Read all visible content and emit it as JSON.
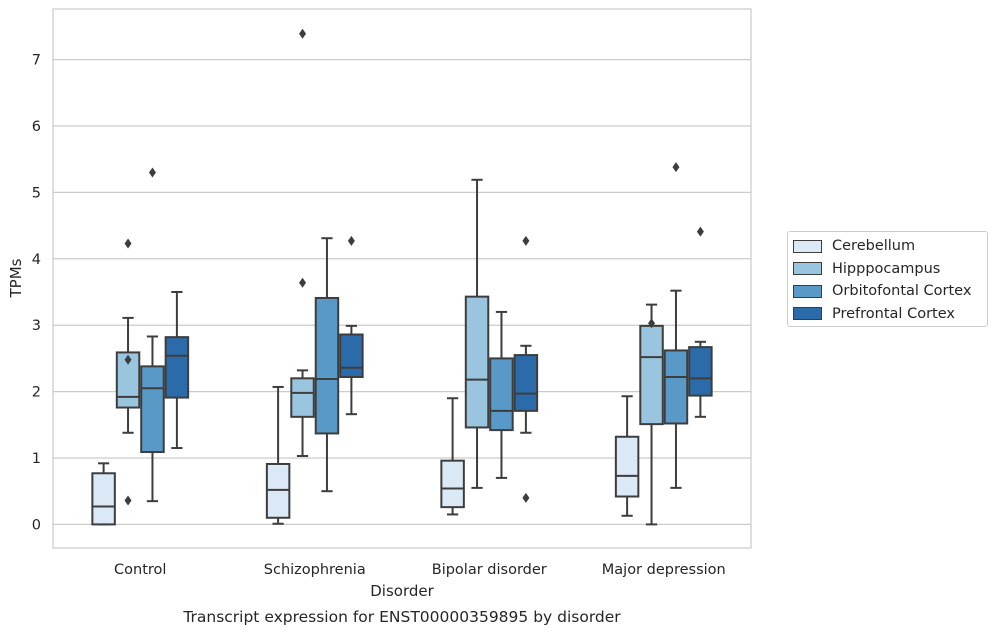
{
  "chart_data": {
    "type": "boxplot",
    "title": "Transcript expression for ENST00000359895 by disorder",
    "xlabel": "Disorder",
    "ylabel": "TPMs",
    "ylim": [
      -0.35,
      7.75
    ],
    "yticks": [
      "0",
      "1",
      "2",
      "3",
      "4",
      "5",
      "6",
      "7"
    ],
    "categories": [
      "Control",
      "Schizophrenia",
      "Bipolar disorder",
      "Major depression"
    ],
    "grid": "horizontal",
    "legend_position": "right",
    "series": [
      {
        "name": "Cerebellum",
        "color": "#dbe8f5",
        "boxes": [
          {
            "whisker_low": 0.0,
            "q1": 0.0,
            "median": 0.27,
            "q3": 0.77,
            "whisker_high": 0.92,
            "outliers": []
          },
          {
            "whisker_low": 0.01,
            "q1": 0.1,
            "median": 0.52,
            "q3": 0.91,
            "whisker_high": 2.07,
            "outliers": []
          },
          {
            "whisker_low": 0.15,
            "q1": 0.26,
            "median": 0.54,
            "q3": 0.96,
            "whisker_high": 1.9,
            "outliers": []
          },
          {
            "whisker_low": 0.13,
            "q1": 0.42,
            "median": 0.73,
            "q3": 1.32,
            "whisker_high": 1.93,
            "outliers": []
          }
        ]
      },
      {
        "name": "Hipppocampus",
        "color": "#9ac5df",
        "boxes": [
          {
            "whisker_low": 1.38,
            "q1": 1.76,
            "median": 1.92,
            "q3": 2.59,
            "whisker_high": 3.11,
            "outliers": [
              2.48,
              0.36,
              4.23
            ]
          },
          {
            "whisker_low": 1.03,
            "q1": 1.62,
            "median": 1.98,
            "q3": 2.2,
            "whisker_high": 2.32,
            "outliers": [
              3.64,
              7.39
            ]
          },
          {
            "whisker_low": 0.55,
            "q1": 1.46,
            "median": 2.18,
            "q3": 3.43,
            "whisker_high": 5.19,
            "outliers": []
          },
          {
            "whisker_low": 0.0,
            "q1": 1.51,
            "median": 2.52,
            "q3": 2.99,
            "whisker_high": 3.31,
            "outliers": [
              3.03
            ]
          }
        ]
      },
      {
        "name": "Orbitofontal Cortex",
        "color": "#5899c8",
        "boxes": [
          {
            "whisker_low": 0.35,
            "q1": 1.09,
            "median": 2.05,
            "q3": 2.38,
            "whisker_high": 2.83,
            "outliers": [
              5.3
            ]
          },
          {
            "whisker_low": 0.5,
            "q1": 1.37,
            "median": 2.19,
            "q3": 3.41,
            "whisker_high": 4.31,
            "outliers": []
          },
          {
            "whisker_low": 0.7,
            "q1": 1.42,
            "median": 1.71,
            "q3": 2.5,
            "whisker_high": 3.2,
            "outliers": []
          },
          {
            "whisker_low": 0.55,
            "q1": 1.52,
            "median": 2.22,
            "q3": 2.62,
            "whisker_high": 3.52,
            "outliers": [
              5.38
            ]
          }
        ]
      },
      {
        "name": "Prefrontal Cortex",
        "color": "#2b6ba9",
        "boxes": [
          {
            "whisker_low": 1.15,
            "q1": 1.91,
            "median": 2.54,
            "q3": 2.82,
            "whisker_high": 3.5,
            "outliers": []
          },
          {
            "whisker_low": 1.66,
            "q1": 2.22,
            "median": 2.36,
            "q3": 2.86,
            "whisker_high": 2.99,
            "outliers": [
              4.27
            ]
          },
          {
            "whisker_low": 1.38,
            "q1": 1.71,
            "median": 1.97,
            "q3": 2.55,
            "whisker_high": 2.69,
            "outliers": [
              0.4,
              4.27
            ]
          },
          {
            "whisker_low": 1.62,
            "q1": 1.94,
            "median": 2.2,
            "q3": 2.67,
            "whisker_high": 2.75,
            "outliers": [
              4.41
            ]
          }
        ]
      }
    ]
  }
}
